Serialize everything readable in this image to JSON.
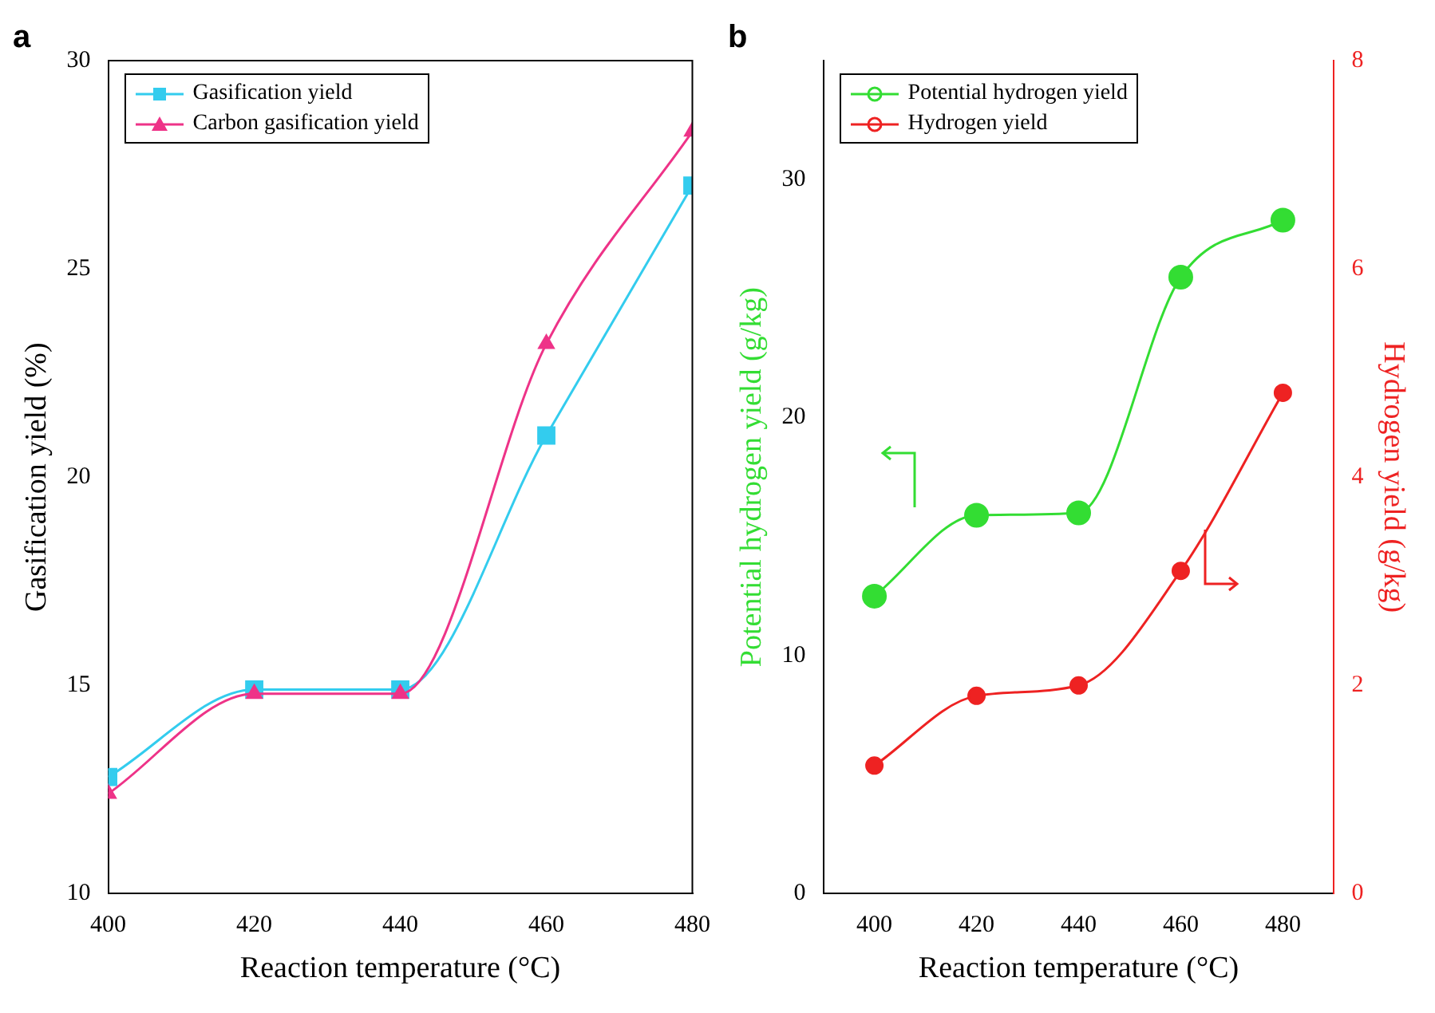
{
  "chart_data": [
    {
      "type": "line",
      "title": "a",
      "xlabel": "Reaction temperature (°C)",
      "ylabel": "Gasification yield (%)",
      "x": [
        400,
        420,
        440,
        460,
        480
      ],
      "xlim": [
        400,
        480
      ],
      "xticks": [
        400,
        420,
        440,
        460,
        480
      ],
      "ylim": [
        10,
        30
      ],
      "yticks": [
        10,
        15,
        20,
        25,
        30
      ],
      "legend": "top left",
      "grid": false,
      "series": [
        {
          "name": "Gasification yield",
          "color": "#33ccee",
          "marker": "square",
          "values": [
            12.8,
            14.9,
            14.9,
            21,
            27
          ]
        },
        {
          "name": "Carbon gasification yield",
          "color": "#ee3388",
          "marker": "triangle",
          "values": [
            12.4,
            14.8,
            14.8,
            23.2,
            28.3
          ]
        }
      ]
    },
    {
      "type": "line",
      "title": "b",
      "xlabel": "Reaction temperature (°C)",
      "ylabel": "Potential hydrogen yield (g/kg)",
      "y2label": "Hydrogen yield (g/kg)",
      "x": [
        400,
        420,
        440,
        460,
        480
      ],
      "xlim": [
        390,
        490
      ],
      "xticks": [
        400,
        420,
        440,
        460,
        480
      ],
      "ylim": [
        0,
        35
      ],
      "yticks": [
        0,
        10,
        20,
        30
      ],
      "y2lim": [
        0,
        8
      ],
      "y2ticks": [
        0,
        2,
        4,
        6,
        8
      ],
      "legend": "top left",
      "grid": false,
      "marker": "circle",
      "series": [
        {
          "name": "Potential hydrogen yield",
          "color": "#33dd33",
          "values": [
            12.5,
            15.9,
            16,
            25.9,
            28.3
          ]
        },
        {
          "name": "Hydrogen yield",
          "color": "#ee2222",
          "axis": "y2",
          "values": [
            1.23,
            1.9,
            2.0,
            3.1,
            4.81
          ]
        }
      ]
    }
  ]
}
